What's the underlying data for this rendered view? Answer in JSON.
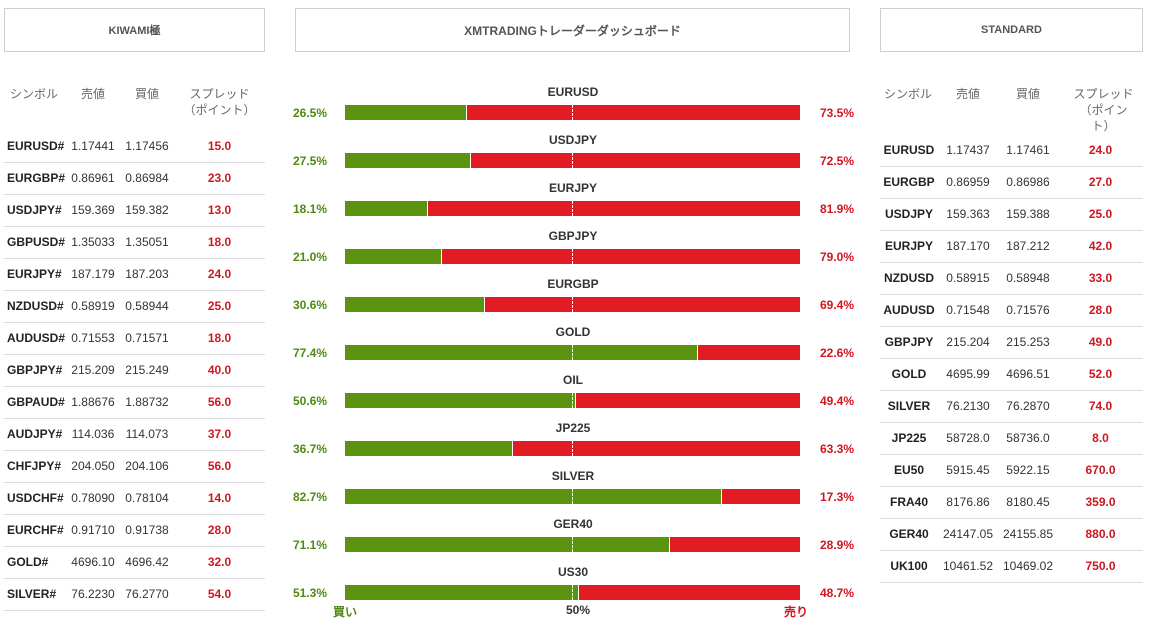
{
  "headers": {
    "left": "KIWAMI極",
    "center": "XMTRADINGトレーダーダッシュボード",
    "right": "STANDARD"
  },
  "left_table": {
    "columns": [
      "シンボル",
      "売値",
      "買値",
      "スプレッド（ポイント）"
    ],
    "rows": [
      {
        "symbol": "EURUSD#",
        "bid": "1.17441",
        "ask": "1.17456",
        "spread": "15.0"
      },
      {
        "symbol": "EURGBP#",
        "bid": "0.86961",
        "ask": "0.86984",
        "spread": "23.0"
      },
      {
        "symbol": "USDJPY#",
        "bid": "159.369",
        "ask": "159.382",
        "spread": "13.0"
      },
      {
        "symbol": "GBPUSD#",
        "bid": "1.35033",
        "ask": "1.35051",
        "spread": "18.0"
      },
      {
        "symbol": "EURJPY#",
        "bid": "187.179",
        "ask": "187.203",
        "spread": "24.0"
      },
      {
        "symbol": "NZDUSD#",
        "bid": "0.58919",
        "ask": "0.58944",
        "spread": "25.0"
      },
      {
        "symbol": "AUDUSD#",
        "bid": "0.71553",
        "ask": "0.71571",
        "spread": "18.0"
      },
      {
        "symbol": "GBPJPY#",
        "bid": "215.209",
        "ask": "215.249",
        "spread": "40.0"
      },
      {
        "symbol": "GBPAUD#",
        "bid": "1.88676",
        "ask": "1.88732",
        "spread": "56.0"
      },
      {
        "symbol": "AUDJPY#",
        "bid": "114.036",
        "ask": "114.073",
        "spread": "37.0"
      },
      {
        "symbol": "CHFJPY#",
        "bid": "204.050",
        "ask": "204.106",
        "spread": "56.0"
      },
      {
        "symbol": "USDCHF#",
        "bid": "0.78090",
        "ask": "0.78104",
        "spread": "14.0"
      },
      {
        "symbol": "EURCHF#",
        "bid": "0.91710",
        "ask": "0.91738",
        "spread": "28.0"
      },
      {
        "symbol": "GOLD#",
        "bid": "4696.10",
        "ask": "4696.42",
        "spread": "32.0"
      },
      {
        "symbol": "SILVER#",
        "bid": "76.2230",
        "ask": "76.2770",
        "spread": "54.0"
      }
    ]
  },
  "right_table": {
    "columns": [
      "シンボル",
      "売値",
      "買値",
      "スプレッド（ポイント）"
    ],
    "rows": [
      {
        "symbol": "EURUSD",
        "bid": "1.17437",
        "ask": "1.17461",
        "spread": "24.0"
      },
      {
        "symbol": "EURGBP",
        "bid": "0.86959",
        "ask": "0.86986",
        "spread": "27.0"
      },
      {
        "symbol": "USDJPY",
        "bid": "159.363",
        "ask": "159.388",
        "spread": "25.0"
      },
      {
        "symbol": "EURJPY",
        "bid": "187.170",
        "ask": "187.212",
        "spread": "42.0"
      },
      {
        "symbol": "NZDUSD",
        "bid": "0.58915",
        "ask": "0.58948",
        "spread": "33.0"
      },
      {
        "symbol": "AUDUSD",
        "bid": "0.71548",
        "ask": "0.71576",
        "spread": "28.0"
      },
      {
        "symbol": "GBPJPY",
        "bid": "215.204",
        "ask": "215.253",
        "spread": "49.0"
      },
      {
        "symbol": "GOLD",
        "bid": "4695.99",
        "ask": "4696.51",
        "spread": "52.0"
      },
      {
        "symbol": "SILVER",
        "bid": "76.2130",
        "ask": "76.2870",
        "spread": "74.0"
      },
      {
        "symbol": "JP225",
        "bid": "58728.0",
        "ask": "58736.0",
        "spread": "8.0"
      },
      {
        "symbol": "EU50",
        "bid": "5915.45",
        "ask": "5922.15",
        "spread": "670.0"
      },
      {
        "symbol": "FRA40",
        "bid": "8176.86",
        "ask": "8180.45",
        "spread": "359.0"
      },
      {
        "symbol": "GER40",
        "bid": "24147.05",
        "ask": "24155.85",
        "spread": "880.0"
      },
      {
        "symbol": "UK100",
        "bid": "10461.52",
        "ask": "10469.02",
        "spread": "750.0"
      }
    ]
  },
  "sentiment": {
    "rows": [
      {
        "symbol": "EURUSD",
        "buy": "26.5%",
        "sell": "73.5%",
        "buy_pct": 26.5
      },
      {
        "symbol": "USDJPY",
        "buy": "27.5%",
        "sell": "72.5%",
        "buy_pct": 27.5
      },
      {
        "symbol": "EURJPY",
        "buy": "18.1%",
        "sell": "81.9%",
        "buy_pct": 18.1
      },
      {
        "symbol": "GBPJPY",
        "buy": "21.0%",
        "sell": "79.0%",
        "buy_pct": 21.0
      },
      {
        "symbol": "EURGBP",
        "buy": "30.6%",
        "sell": "69.4%",
        "buy_pct": 30.6
      },
      {
        "symbol": "GOLD",
        "buy": "77.4%",
        "sell": "22.6%",
        "buy_pct": 77.4
      },
      {
        "symbol": "OIL",
        "buy": "50.6%",
        "sell": "49.4%",
        "buy_pct": 50.6
      },
      {
        "symbol": "JP225",
        "buy": "36.7%",
        "sell": "63.3%",
        "buy_pct": 36.7
      },
      {
        "symbol": "SILVER",
        "buy": "82.7%",
        "sell": "17.3%",
        "buy_pct": 82.7
      },
      {
        "symbol": "GER40",
        "buy": "71.1%",
        "sell": "28.9%",
        "buy_pct": 71.1
      },
      {
        "symbol": "US30",
        "buy": "51.3%",
        "sell": "48.7%",
        "buy_pct": 51.3
      }
    ],
    "axis": {
      "buy_label": "買い",
      "mid_label": "50%",
      "sell_label": "売り"
    }
  },
  "colors": {
    "buy": "#5b920e",
    "sell": "#e01b23",
    "spread_text": "#d0161f"
  }
}
